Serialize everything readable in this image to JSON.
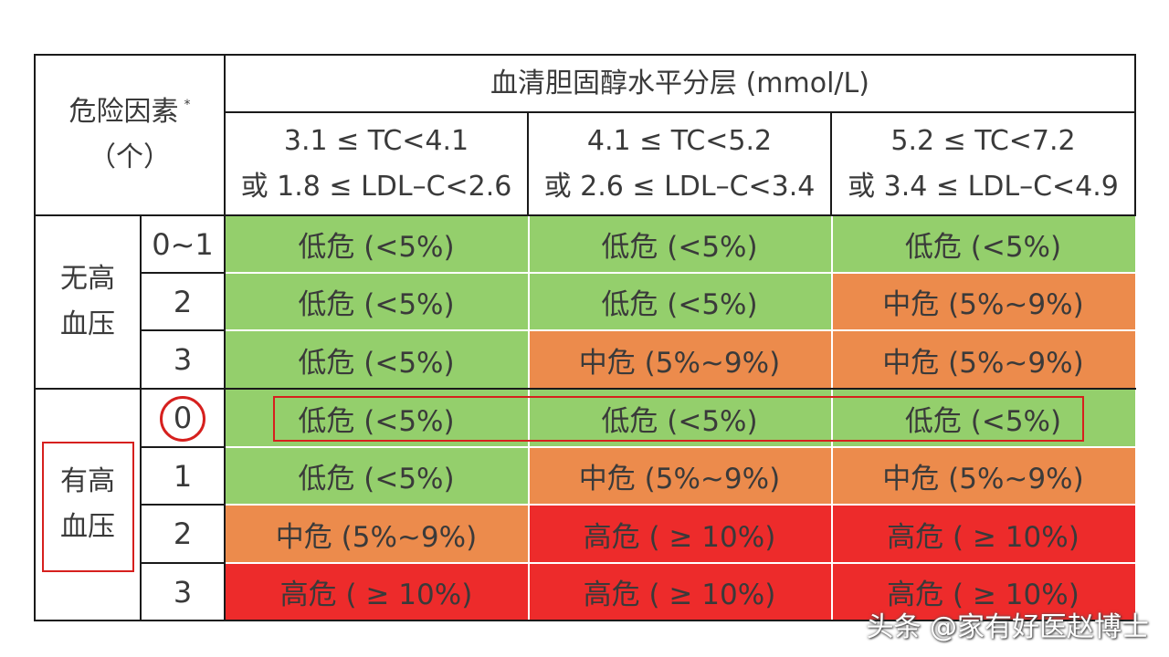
{
  "header": {
    "risk_factors_label": "危险因素",
    "risk_factors_mark": "*",
    "risk_factors_unit": "（个）",
    "cholesterol_title": "血清胆固醇水平分层 (mmol/L)",
    "columns": [
      {
        "line1": "3.1 ≤ TC<4.1",
        "line2": "或 1.8 ≤ LDL–C<2.6"
      },
      {
        "line1": "4.1 ≤ TC<5.2",
        "line2": "或 2.6 ≤ LDL–C<3.4"
      },
      {
        "line1": "5.2 ≤ TC<7.2",
        "line2": "或 3.4 ≤ LDL–C<4.9"
      }
    ]
  },
  "groups": [
    {
      "label_line1": "无高",
      "label_line2": "血压"
    },
    {
      "label_line1": "有高",
      "label_line2": "血压"
    }
  ],
  "rows": [
    {
      "count": "0~1",
      "cells": [
        "低危 (<5%)",
        "低危 (<5%)",
        "低危 (<5%)"
      ],
      "levels": [
        "low",
        "low",
        "low"
      ]
    },
    {
      "count": "2",
      "cells": [
        "低危 (<5%)",
        "低危 (<5%)",
        "中危 (5%~9%)"
      ],
      "levels": [
        "low",
        "low",
        "mid"
      ]
    },
    {
      "count": "3",
      "cells": [
        "低危 (<5%)",
        "中危 (5%~9%)",
        "中危 (5%~9%)"
      ],
      "levels": [
        "low",
        "mid",
        "mid"
      ]
    },
    {
      "count": "0",
      "cells": [
        "低危 (<5%)",
        "低危 (<5%)",
        "低危 (<5%)"
      ],
      "levels": [
        "low",
        "low",
        "low"
      ]
    },
    {
      "count": "1",
      "cells": [
        "低危 (<5%)",
        "中危 (5%~9%)",
        "中危 (5%~9%)"
      ],
      "levels": [
        "low",
        "mid",
        "mid"
      ]
    },
    {
      "count": "2",
      "cells": [
        "中危 (5%~9%)",
        "高危 ( ≥ 10%)",
        "高危 ( ≥ 10%)"
      ],
      "levels": [
        "mid",
        "high",
        "high"
      ]
    },
    {
      "count": "3",
      "cells": [
        "高危 ( ≥ 10%)",
        "高危 ( ≥ 10%)",
        "高危 ( ≥ 10%)"
      ],
      "levels": [
        "high",
        "high",
        "high"
      ]
    }
  ],
  "colors": {
    "low": "#94cf6c",
    "mid": "#ec8b4c",
    "high": "#ed2b2b",
    "annotation": "#d6201e"
  },
  "watermark": "头条 @家有好医赵博士"
}
